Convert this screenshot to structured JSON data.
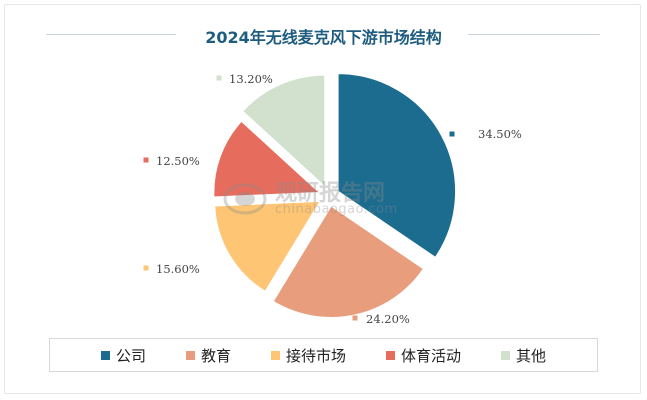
{
  "chart_data": {
    "type": "pie",
    "title": "2024年无线麦克风下游市场结构",
    "categories": [
      "公司",
      "教育",
      "接待市场",
      "体育活动",
      "其他"
    ],
    "values": [
      34.5,
      24.2,
      15.6,
      12.5,
      13.2
    ],
    "value_labels": [
      "34.50%",
      "24.20%",
      "15.60%",
      "12.50%",
      "13.20%"
    ],
    "colors": [
      "#1c6c8f",
      "#e89e7c",
      "#fdc574",
      "#e66d5e",
      "#d1e1cd"
    ],
    "legend_position": "bottom",
    "exploded": true
  },
  "watermark": {
    "name": "观研报告网",
    "url": "chinabaogao.com"
  }
}
